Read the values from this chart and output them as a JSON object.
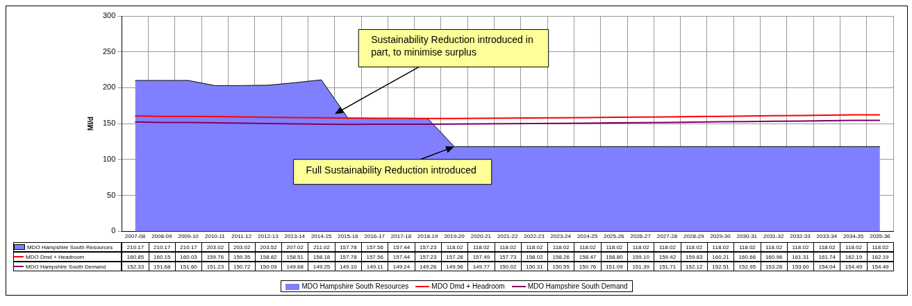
{
  "chart_data": {
    "type": "area",
    "ylabel": "Ml/d",
    "categories": [
      "2007-08",
      "2008-09",
      "2009-10",
      "2010-11",
      "2011-12",
      "2012-13",
      "2013-14",
      "2014-15",
      "2015-16",
      "2016-17",
      "2017-18",
      "2018-19",
      "2019-20",
      "2020-21",
      "2021-22",
      "2022-23",
      "2023-24",
      "2024-25",
      "2025-26",
      "2026-27",
      "2027-28",
      "2028-29",
      "2029-30",
      "2030-31",
      "2031-32",
      "2032-33",
      "2033-34",
      "2034-35",
      "2035-36"
    ],
    "series": [
      {
        "name": "MDO Hampshire South Resources",
        "color": "#8080ff",
        "values": [
          210.17,
          210.17,
          210.17,
          203.02,
          203.02,
          203.52,
          207.02,
          211.02,
          157.78,
          157.56,
          157.44,
          157.23,
          118.02,
          118.02,
          118.02,
          118.02,
          118.02,
          118.02,
          118.02,
          118.02,
          118.02,
          118.02,
          118.02,
          118.02,
          118.02,
          118.02,
          118.02,
          118.02,
          118.02
        ],
        "value_labels": [
          "210.17",
          "210.17",
          "210.17",
          "203.02",
          "203.02",
          "203.52",
          "207.02",
          "211.02",
          "157.78",
          "157.56",
          "157.44",
          "157.23",
          "118.02",
          "118.02",
          "118.02",
          "118.02",
          "118.02",
          "118.02",
          "118.02",
          "118.02",
          "118.02",
          "118.02",
          "118.02",
          "118.02",
          "118.02",
          "118.02",
          "118.02",
          "118.02",
          "118.02"
        ]
      },
      {
        "name": "MDO Dmd + Headroom",
        "type": "line",
        "color": "#ff0000",
        "values": [
          160.85,
          160.15,
          160.03,
          159.76,
          159.35,
          158.82,
          158.51,
          158.18,
          157.78,
          157.56,
          157.44,
          157.23,
          157.28,
          157.49,
          157.73,
          158.02,
          158.26,
          158.47,
          158.8,
          159.1,
          159.42,
          159.83,
          160.21,
          160.66,
          160.96,
          161.31,
          161.74,
          162.19,
          162.19
        ],
        "value_labels": [
          "160.85",
          "160.15",
          "160.03",
          "159.76",
          "159.35",
          "158.82",
          "158.51",
          "158.18",
          "157.78",
          "157.56",
          "157.44",
          "157.23",
          "157.28",
          "157.49",
          "157.73",
          "158.02",
          "158.26",
          "158.47",
          "158.80",
          "159.10",
          "159.42",
          "159.83",
          "160.21",
          "160.66",
          "160.96",
          "161.31",
          "161.74",
          "162.19",
          "162.19"
        ]
      },
      {
        "name": "MDO Hampshire South Demand",
        "type": "line",
        "color": "#800060",
        "values": [
          152.33,
          151.68,
          151.6,
          151.23,
          150.72,
          150.09,
          149.68,
          149.25,
          149.1,
          149.11,
          149.24,
          149.26,
          149.56,
          149.77,
          150.02,
          150.31,
          150.55,
          150.76,
          151.09,
          151.39,
          151.71,
          152.12,
          152.51,
          152.95,
          153.26,
          153.6,
          154.04,
          154.49,
          154.49
        ],
        "value_labels": [
          "152.33",
          "151.68",
          "151.60",
          "151.23",
          "150.72",
          "150.09",
          "149.68",
          "149.25",
          "149.10",
          "149.11",
          "149.24",
          "149.26",
          "149.56",
          "149.77",
          "150.02",
          "150.31",
          "150.55",
          "150.76",
          "151.09",
          "151.39",
          "151.71",
          "152.12",
          "152.51",
          "152.95",
          "153.26",
          "153.60",
          "154.04",
          "154.49",
          "154.49"
        ]
      }
    ],
    "ylim": [
      0,
      300
    ],
    "yticks": [
      0,
      50,
      100,
      150,
      200,
      250,
      300
    ],
    "grid": true,
    "legend": "bottom",
    "annotations": [
      "Sustainability Reduction introduced in part, to minimise surplus",
      {
        "text": "Full Sustainability Reduction introduced",
        "x": "2019-20",
        "y": 118.02
      }
    ]
  }
}
